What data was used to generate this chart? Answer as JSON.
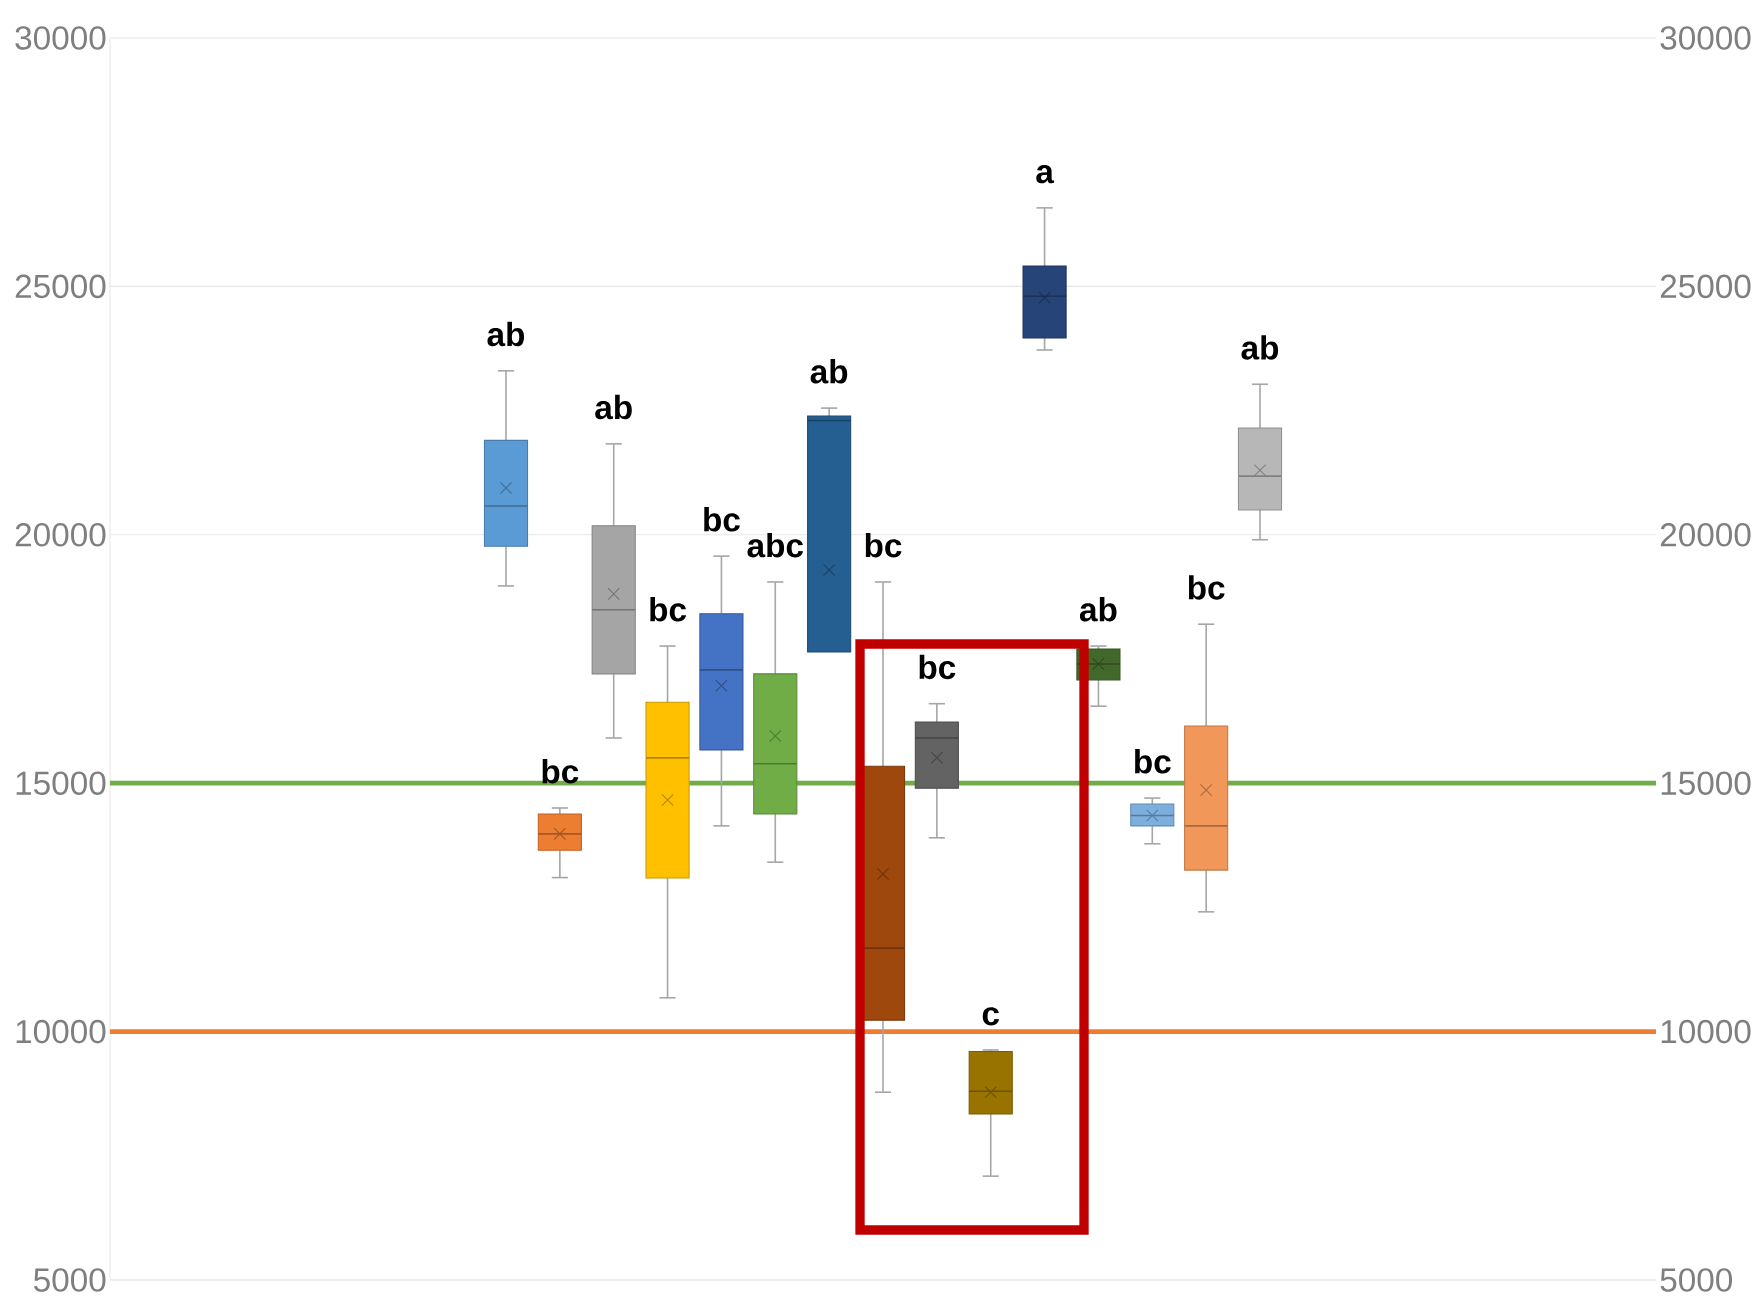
{
  "chart_data": {
    "type": "box",
    "categories": [
      null
    ],
    "series": [
      {
        "color": "#5b9bd5",
        "boxes": [
          {
            "low": 18970,
            "q1": 19770,
            "median": 20580,
            "q3": 21900,
            "high": 23300,
            "mean": 20940
          }
        ]
      },
      {
        "color": "#ed7d31",
        "boxes": [
          {
            "low": 13100,
            "q1": 13650,
            "median": 13980,
            "q3": 14380,
            "high": 14500,
            "mean": 13980
          }
        ]
      },
      {
        "color": "#a5a5a5",
        "boxes": [
          {
            "low": 15910,
            "q1": 17200,
            "median": 18490,
            "q3": 20180,
            "high": 21830,
            "mean": 18810
          }
        ]
      },
      {
        "color": "#ffc000",
        "boxes": [
          {
            "low": 10680,
            "q1": 13090,
            "median": 15510,
            "q3": 16630,
            "high": 17760,
            "mean": 14660
          }
        ]
      },
      {
        "color": "#4472c4",
        "boxes": [
          {
            "low": 14140,
            "q1": 15670,
            "median": 17280,
            "q3": 18410,
            "high": 19570,
            "mean": 16960
          }
        ]
      },
      {
        "color": "#70ad47",
        "boxes": [
          {
            "low": 13410,
            "q1": 14380,
            "median": 15390,
            "q3": 17200,
            "high": 19050,
            "mean": 15950
          }
        ]
      },
      {
        "color": "#255e91",
        "boxes": [
          {
            "low": 17640,
            "q1": 17640,
            "median": 22300,
            "q3": 22390,
            "high": 22550,
            "mean": 19290
          }
        ]
      },
      {
        "color": "#9e480e",
        "boxes": [
          {
            "low": 8780,
            "q1": 10230,
            "median": 11680,
            "q3": 15340,
            "high": 19050,
            "mean": 13170
          }
        ]
      },
      {
        "color": "#636363",
        "boxes": [
          {
            "low": 13900,
            "q1": 14900,
            "median": 15910,
            "q3": 16230,
            "high": 16600,
            "mean": 15510
          }
        ]
      },
      {
        "color": "#997300",
        "boxes": [
          {
            "low": 7090,
            "q1": 8340,
            "median": 8800,
            "q3": 9600,
            "high": 9630,
            "mean": 8780
          }
        ]
      },
      {
        "color": "#264478",
        "boxes": [
          {
            "low": 23720,
            "q1": 23960,
            "median": 24800,
            "q3": 25410,
            "high": 26580,
            "mean": 24770
          }
        ]
      },
      {
        "color": "#43682b",
        "boxes": [
          {
            "low": 16550,
            "q1": 17080,
            "median": 17400,
            "q3": 17700,
            "high": 17760,
            "mean": 17400
          }
        ]
      },
      {
        "color": "#7cafdd",
        "boxes": [
          {
            "low": 13780,
            "q1": 14140,
            "median": 14350,
            "q3": 14580,
            "high": 14700,
            "mean": 14350
          }
        ]
      },
      {
        "color": "#f1975a",
        "boxes": [
          {
            "low": 12410,
            "q1": 13250,
            "median": 14140,
            "q3": 16150,
            "high": 18200,
            "mean": 14860
          }
        ]
      },
      {
        "color": "#b7b7b7",
        "boxes": [
          {
            "low": 19900,
            "q1": 20500,
            "median": 21180,
            "q3": 22150,
            "high": 23030,
            "mean": 21300
          }
        ]
      }
    ],
    "annotations": [
      "ab",
      "bc",
      "ab",
      "bc",
      "bc",
      "abc",
      "ab",
      "bc",
      "bc",
      "c",
      "a",
      "ab",
      "bc",
      "bc",
      "ab"
    ],
    "ylim": [
      5000,
      30000
    ],
    "yticks": [
      5000,
      10000,
      15000,
      20000,
      25000,
      30000
    ],
    "y2lim": [
      5000,
      30000
    ],
    "y2ticks": [
      5000,
      10000,
      15000,
      20000,
      25000,
      30000
    ],
    "ref_lines": [
      {
        "axis": "y",
        "value": 15000,
        "color": "#70ad47"
      },
      {
        "axis": "y",
        "value": 10000,
        "color": "#ed7d31"
      }
    ],
    "grid": "y"
  }
}
